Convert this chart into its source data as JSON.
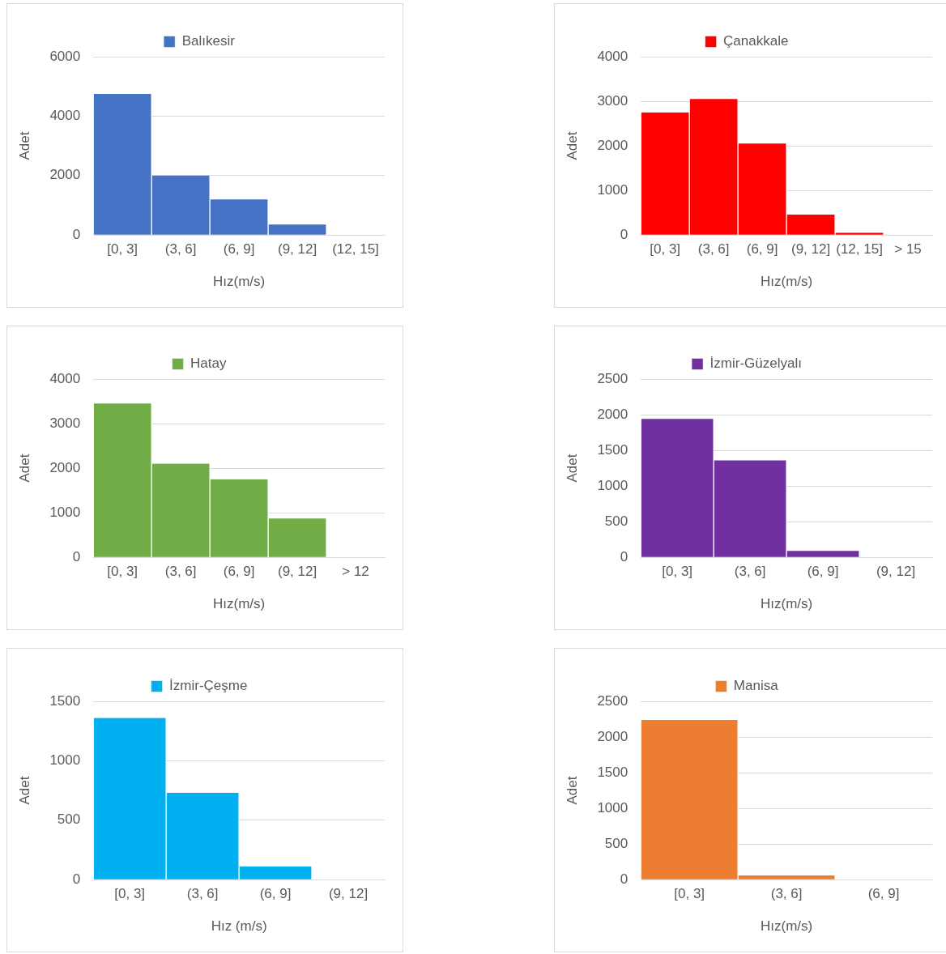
{
  "chart_data": [
    {
      "type": "bar",
      "categories": [
        "[0, 3]",
        "(3, 6]",
        "(6, 9]",
        "(9, 12]",
        "(12, 15]"
      ],
      "series": [
        {
          "name": "Balıkesir",
          "color": "#4472c4",
          "values": [
            4750,
            2000,
            1200,
            350,
            0
          ]
        }
      ],
      "xlabel": "Hız(m/s)",
      "ylabel": "Adet",
      "ylim": [
        0,
        6000
      ],
      "yticks": [
        0,
        2000,
        4000,
        6000
      ],
      "grid": "y",
      "legend": "top"
    },
    {
      "type": "bar",
      "categories": [
        "[0, 3]",
        "(3, 6]",
        "(6, 9]",
        "(9, 12]",
        "(12, 15]",
        "> 15"
      ],
      "series": [
        {
          "name": "Çanakkale",
          "color": "#ff0000",
          "values": [
            2750,
            3050,
            2050,
            460,
            50,
            0
          ]
        }
      ],
      "xlabel": "Hız(m/s)",
      "ylabel": "Adet",
      "ylim": [
        0,
        4000
      ],
      "yticks": [
        0,
        1000,
        2000,
        3000,
        4000
      ],
      "grid": "y",
      "legend": "top"
    },
    {
      "type": "bar",
      "categories": [
        "[0, 3]",
        "(3, 6]",
        "(6, 9]",
        "(9, 12]",
        "> 12"
      ],
      "series": [
        {
          "name": "Hatay",
          "color": "#70ad47",
          "values": [
            3450,
            2100,
            1750,
            870,
            0
          ]
        }
      ],
      "xlabel": "Hız(m/s)",
      "ylabel": "Adet",
      "ylim": [
        0,
        4000
      ],
      "yticks": [
        0,
        1000,
        2000,
        3000,
        4000
      ],
      "grid": "y",
      "legend": "top"
    },
    {
      "type": "bar",
      "categories": [
        "[0, 3]",
        "(3, 6]",
        "(6, 9]",
        "(9, 12]"
      ],
      "series": [
        {
          "name": "İzmir-Güzelyalı",
          "color": "#7030a0",
          "values": [
            1940,
            1360,
            90,
            0
          ]
        }
      ],
      "xlabel": "Hız(m/s)",
      "ylabel": "Adet",
      "ylim": [
        0,
        2500
      ],
      "yticks": [
        0,
        500,
        1000,
        1500,
        2000,
        2500
      ],
      "grid": "y",
      "legend": "top"
    },
    {
      "type": "bar",
      "categories": [
        "[0, 3]",
        "(3, 6]",
        "(6, 9]",
        "(9, 12]"
      ],
      "series": [
        {
          "name": "İzmir-Çeşme",
          "color": "#00b0f0",
          "values": [
            1360,
            730,
            110,
            0
          ]
        }
      ],
      "xlabel": "Hız (m/s)",
      "ylabel": "Adet",
      "ylim": [
        0,
        1500
      ],
      "yticks": [
        0,
        500,
        1000,
        1500
      ],
      "grid": "y",
      "legend": "top"
    },
    {
      "type": "bar",
      "categories": [
        "[0, 3]",
        "(3, 6]",
        "(6, 9]"
      ],
      "series": [
        {
          "name": "Manisa",
          "color": "#ed7d31",
          "values": [
            2240,
            60,
            0
          ]
        }
      ],
      "xlabel": "Hız(m/s)",
      "ylabel": "Adet",
      "ylim": [
        0,
        2500
      ],
      "yticks": [
        0,
        500,
        1000,
        1500,
        2000,
        2500
      ],
      "grid": "y",
      "legend": "top"
    }
  ]
}
